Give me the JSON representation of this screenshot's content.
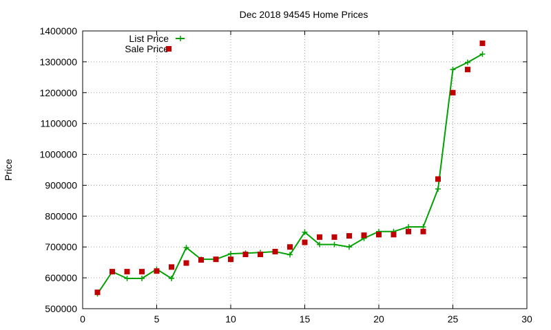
{
  "chart_data": {
    "type": "line",
    "title": "Dec 2018 94545 Home Prices",
    "xlabel": "",
    "ylabel": "Price",
    "xlim": [
      0,
      30
    ],
    "ylim": [
      500000,
      1400000
    ],
    "xticks": [
      0,
      5,
      10,
      15,
      20,
      25,
      30
    ],
    "yticks": [
      500000,
      600000,
      700000,
      800000,
      900000,
      1000000,
      1100000,
      1200000,
      1300000,
      1400000
    ],
    "grid": true,
    "legend_position": "top-left",
    "series": [
      {
        "name": "List Price",
        "style": "line-with-plus-markers",
        "color": "#00a000",
        "x": [
          1,
          2,
          3,
          4,
          5,
          6,
          7,
          8,
          9,
          10,
          11,
          12,
          13,
          14,
          15,
          16,
          17,
          18,
          19,
          20,
          21,
          22,
          23,
          24,
          25,
          26,
          27
        ],
        "values": [
          548000,
          620000,
          598000,
          598000,
          628000,
          598000,
          698000,
          660000,
          660000,
          678000,
          680000,
          682000,
          685000,
          675000,
          748000,
          708000,
          708000,
          700000,
          728000,
          750000,
          750000,
          765000,
          765000,
          888000,
          1275000,
          1298000,
          1325000
        ]
      },
      {
        "name": "Sale Price",
        "style": "square-markers",
        "color": "#c00000",
        "x": [
          1,
          2,
          3,
          4,
          5,
          6,
          7,
          8,
          9,
          10,
          11,
          12,
          13,
          14,
          15,
          16,
          17,
          18,
          19,
          20,
          21,
          22,
          23,
          24,
          25,
          26,
          27
        ],
        "values": [
          553000,
          620000,
          620000,
          620000,
          622000,
          635000,
          648000,
          658000,
          660000,
          660000,
          676000,
          676000,
          685000,
          700000,
          715000,
          732000,
          732000,
          736000,
          738000,
          740000,
          740000,
          750000,
          750000,
          920000,
          1200000,
          1275000,
          1360000
        ]
      }
    ]
  }
}
